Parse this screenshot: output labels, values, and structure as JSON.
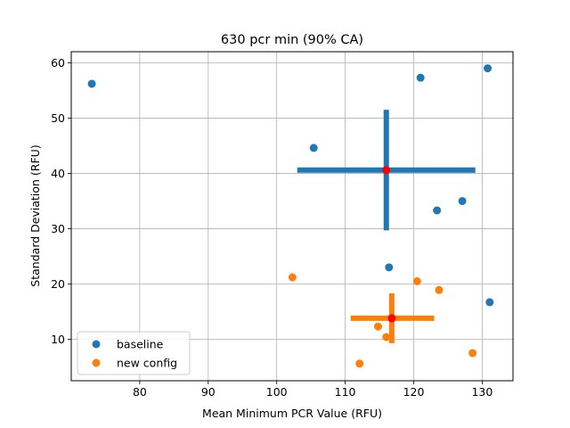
{
  "chart_data": {
    "type": "scatter",
    "title": "630 pcr min (90% CA)",
    "xlabel": "Mean Minimum PCR Value (RFU)",
    "ylabel": "Standard Deviation (RFU)",
    "xlim": [
      70,
      134.5
    ],
    "ylim": [
      2.5,
      62
    ],
    "xticks": [
      80,
      90,
      100,
      110,
      120,
      130
    ],
    "yticks": [
      10,
      20,
      30,
      40,
      50,
      60
    ],
    "grid": true,
    "legend_position": "lower-left",
    "series": [
      {
        "name": "baseline",
        "color": "#1f77b4",
        "points": [
          {
            "x": 73.0,
            "y": 56.2
          },
          {
            "x": 105.4,
            "y": 44.6
          },
          {
            "x": 121.0,
            "y": 57.3
          },
          {
            "x": 130.8,
            "y": 59.0
          },
          {
            "x": 123.4,
            "y": 33.3
          },
          {
            "x": 127.1,
            "y": 35.0
          },
          {
            "x": 116.4,
            "y": 23.0
          },
          {
            "x": 131.1,
            "y": 16.7
          }
        ],
        "cross": {
          "center": {
            "x": 116.0,
            "y": 40.6
          },
          "x_range": [
            103.0,
            129.0
          ],
          "y_range": [
            29.7,
            51.5
          ]
        }
      },
      {
        "name": "new config",
        "color": "#ff7f0e",
        "points": [
          {
            "x": 102.3,
            "y": 21.2
          },
          {
            "x": 120.5,
            "y": 20.5
          },
          {
            "x": 123.7,
            "y": 18.9
          },
          {
            "x": 114.8,
            "y": 12.3
          },
          {
            "x": 116.0,
            "y": 10.4
          },
          {
            "x": 112.1,
            "y": 5.6
          },
          {
            "x": 128.6,
            "y": 7.5
          }
        ],
        "cross": {
          "center": {
            "x": 116.8,
            "y": 13.8
          },
          "x_range": [
            110.8,
            123.0
          ],
          "y_range": [
            9.3,
            18.3
          ]
        }
      }
    ],
    "center_marker_color": "#ff0000"
  }
}
